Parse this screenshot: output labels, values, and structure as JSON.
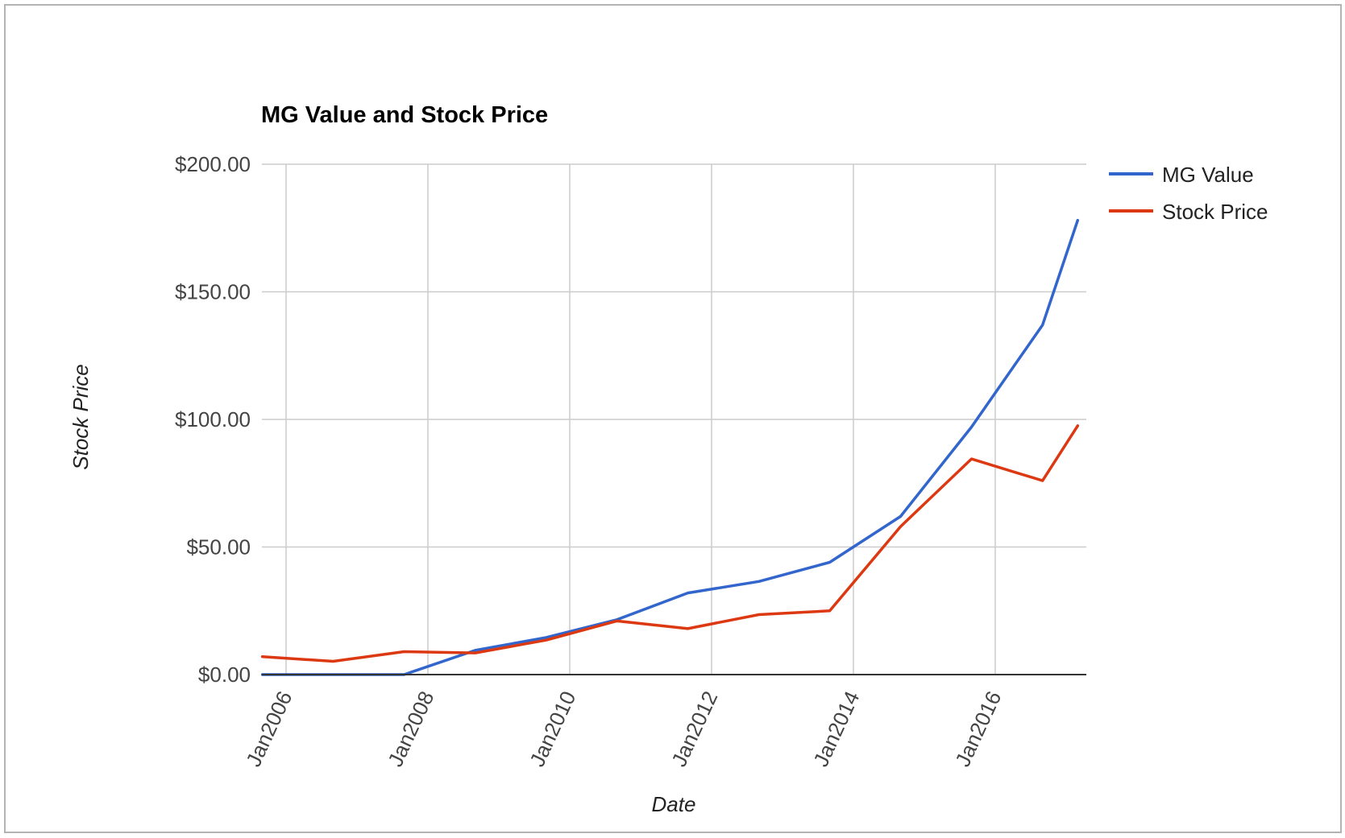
{
  "chart_data": {
    "type": "line",
    "title": "MG Value and Stock Price",
    "xlabel": "Date",
    "ylabel": "Stock Price",
    "x_ticks": [
      "Jan2006",
      "Jan2008",
      "Jan2010",
      "Jan2012",
      "Jan2014",
      "Jan2016"
    ],
    "x": [
      "2005-09",
      "2006-09",
      "2007-09",
      "2008-09",
      "2009-09",
      "2010-09",
      "2011-09",
      "2012-09",
      "2013-09",
      "2014-09",
      "2015-09",
      "2016-09",
      "2017-03"
    ],
    "ylim": [
      0,
      200
    ],
    "y_ticks": [
      "$0.00",
      "$50.00",
      "$100.00",
      "$150.00",
      "$200.00"
    ],
    "grid": true,
    "legend_position": "right",
    "series": [
      {
        "name": "MG Value",
        "color": "#3366cc",
        "values": [
          0,
          0,
          0,
          9.5,
          14.5,
          21.5,
          32,
          36.5,
          44,
          62,
          97,
          137,
          178
        ]
      },
      {
        "name": "Stock Price",
        "color": "#dc3912",
        "values": [
          7,
          5.2,
          9,
          8.5,
          13.5,
          21,
          18,
          23.5,
          25,
          58,
          84.5,
          76,
          97.5
        ]
      }
    ]
  }
}
